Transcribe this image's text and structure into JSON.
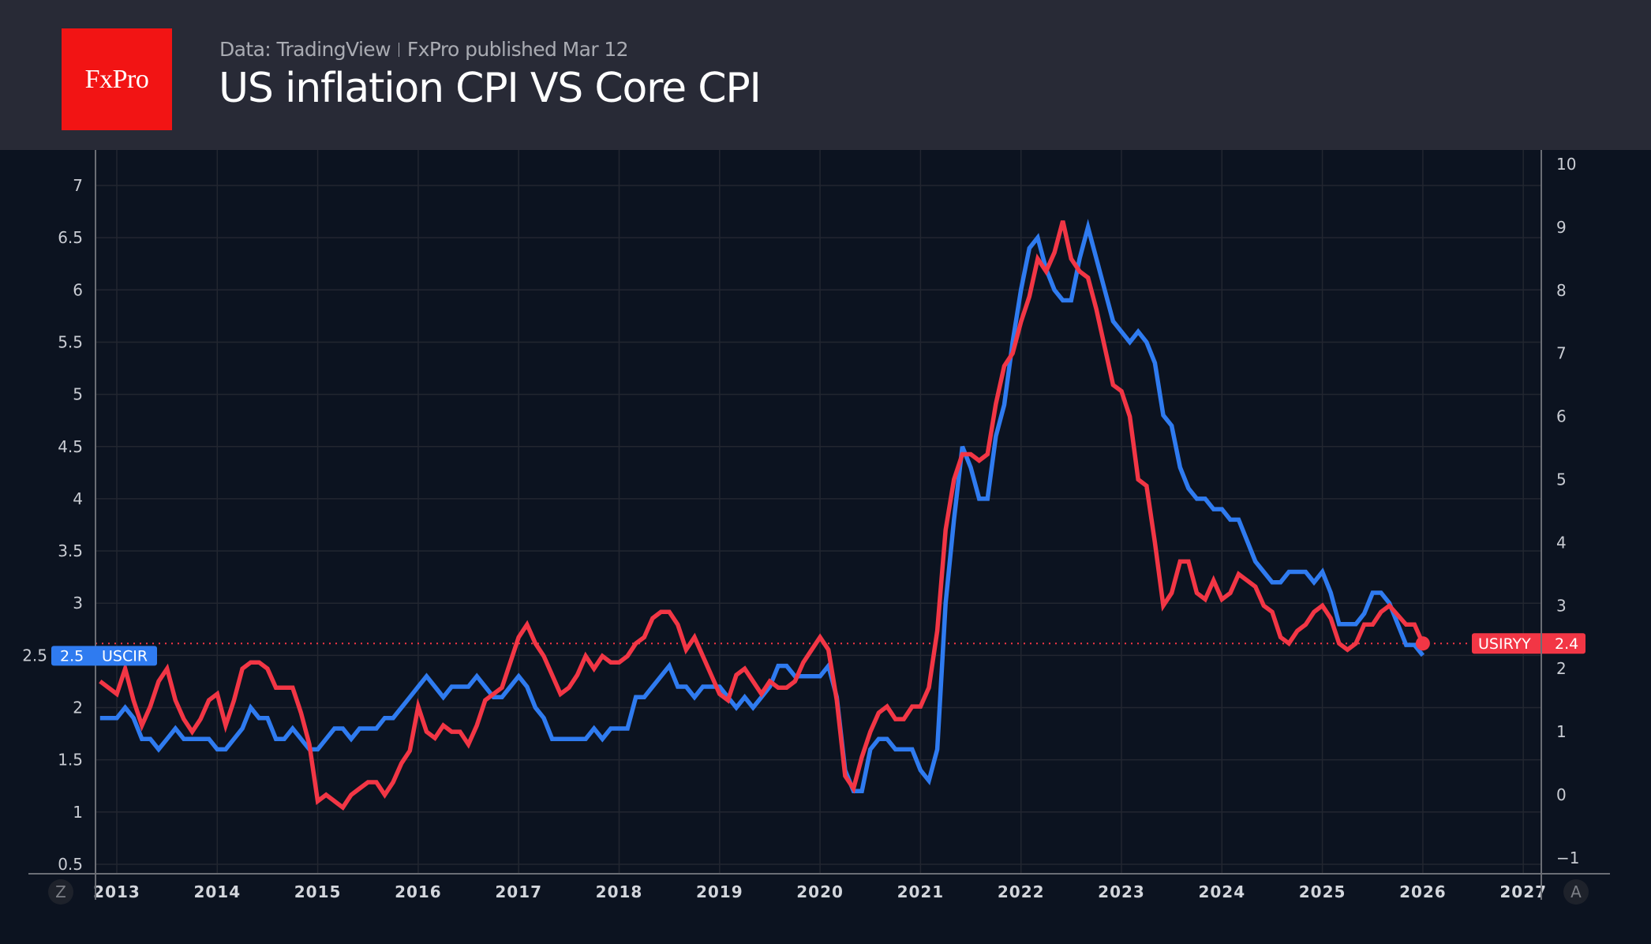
{
  "header": {
    "logo_text": "FxPro",
    "source": "Data: TradingView",
    "publisher": "FxPro published Mar 12",
    "title": "US inflation CPI VS Core CPI"
  },
  "controls": {
    "left_button": "Z",
    "right_button": "A"
  },
  "chart_data": {
    "type": "line",
    "title": "US inflation CPI VS Core CPI",
    "grid": true,
    "x_ticks": [
      "2013",
      "2014",
      "2015",
      "2016",
      "2017",
      "2018",
      "2019",
      "2020",
      "2021",
      "2022",
      "2023",
      "2024",
      "2025",
      "2026",
      "2027"
    ],
    "left_axis": {
      "ticks": [
        "0.5",
        "1",
        "1.5",
        "2",
        "2.5",
        "3",
        "3.5",
        "4",
        "4.5",
        "5",
        "5.5",
        "6",
        "6.5",
        "7"
      ],
      "range": [
        0.5,
        7
      ]
    },
    "right_axis": {
      "ticks": [
        "−1",
        "0",
        "1",
        "2",
        "3",
        "4",
        "5",
        "6",
        "7",
        "8",
        "9",
        "10"
      ],
      "range": [
        -1,
        10
      ]
    },
    "x": [
      "2012-11",
      "2012-12",
      "2013-01",
      "2013-02",
      "2013-03",
      "2013-04",
      "2013-05",
      "2013-06",
      "2013-07",
      "2013-08",
      "2013-09",
      "2013-10",
      "2013-11",
      "2013-12",
      "2014-01",
      "2014-02",
      "2014-03",
      "2014-04",
      "2014-05",
      "2014-06",
      "2014-07",
      "2014-08",
      "2014-09",
      "2014-10",
      "2014-11",
      "2014-12",
      "2015-01",
      "2015-02",
      "2015-03",
      "2015-04",
      "2015-05",
      "2015-06",
      "2015-07",
      "2015-08",
      "2015-09",
      "2015-10",
      "2015-11",
      "2015-12",
      "2016-01",
      "2016-02",
      "2016-03",
      "2016-04",
      "2016-05",
      "2016-06",
      "2016-07",
      "2016-08",
      "2016-09",
      "2016-10",
      "2016-11",
      "2016-12",
      "2017-01",
      "2017-02",
      "2017-03",
      "2017-04",
      "2017-05",
      "2017-06",
      "2017-07",
      "2017-08",
      "2017-09",
      "2017-10",
      "2017-11",
      "2017-12",
      "2018-01",
      "2018-02",
      "2018-03",
      "2018-04",
      "2018-05",
      "2018-06",
      "2018-07",
      "2018-08",
      "2018-09",
      "2018-10",
      "2018-11",
      "2018-12",
      "2019-01",
      "2019-02",
      "2019-03",
      "2019-04",
      "2019-05",
      "2019-06",
      "2019-07",
      "2019-08",
      "2019-09",
      "2019-10",
      "2019-11",
      "2019-12",
      "2020-01",
      "2020-02",
      "2020-03",
      "2020-04",
      "2020-05",
      "2020-06",
      "2020-07",
      "2020-08",
      "2020-09",
      "2020-10",
      "2020-11",
      "2020-12",
      "2021-01",
      "2021-02",
      "2021-03",
      "2021-04",
      "2021-05",
      "2021-06",
      "2021-07",
      "2021-08",
      "2021-09",
      "2021-10",
      "2021-11",
      "2021-12",
      "2022-01",
      "2022-02",
      "2022-03",
      "2022-04",
      "2022-05",
      "2022-06",
      "2022-07",
      "2022-08",
      "2022-09",
      "2022-10",
      "2022-11",
      "2022-12",
      "2023-01",
      "2023-02",
      "2023-03",
      "2023-04",
      "2023-05",
      "2023-06",
      "2023-07",
      "2023-08",
      "2023-09",
      "2023-10",
      "2023-11",
      "2023-12",
      "2024-01",
      "2024-02",
      "2024-03",
      "2024-04",
      "2024-05",
      "2024-06",
      "2024-07",
      "2024-08",
      "2024-09",
      "2024-10",
      "2024-11",
      "2024-12",
      "2025-01",
      "2025-02",
      "2025-03",
      "2025-04",
      "2025-05",
      "2025-06",
      "2025-07",
      "2025-08",
      "2025-09",
      "2025-11",
      "2025-12",
      "2026-01"
    ],
    "series": [
      {
        "name": "USCIR",
        "axis": "left",
        "color": "#2f7bf0",
        "last_value": "2.5",
        "values": [
          1.9,
          1.9,
          1.9,
          2.0,
          1.9,
          1.7,
          1.7,
          1.6,
          1.7,
          1.8,
          1.7,
          1.7,
          1.7,
          1.7,
          1.6,
          1.6,
          1.7,
          1.8,
          2.0,
          1.9,
          1.9,
          1.7,
          1.7,
          1.8,
          1.7,
          1.6,
          1.6,
          1.7,
          1.8,
          1.8,
          1.7,
          1.8,
          1.8,
          1.8,
          1.9,
          1.9,
          2.0,
          2.1,
          2.2,
          2.3,
          2.2,
          2.1,
          2.2,
          2.2,
          2.2,
          2.3,
          2.2,
          2.1,
          2.1,
          2.2,
          2.3,
          2.2,
          2.0,
          1.9,
          1.7,
          1.7,
          1.7,
          1.7,
          1.7,
          1.8,
          1.7,
          1.8,
          1.8,
          1.8,
          2.1,
          2.1,
          2.2,
          2.3,
          2.4,
          2.2,
          2.2,
          2.1,
          2.2,
          2.2,
          2.2,
          2.1,
          2.0,
          2.1,
          2.0,
          2.1,
          2.2,
          2.4,
          2.4,
          2.3,
          2.3,
          2.3,
          2.3,
          2.4,
          2.1,
          1.4,
          1.2,
          1.2,
          1.6,
          1.7,
          1.7,
          1.6,
          1.6,
          1.6,
          1.4,
          1.3,
          1.6,
          3.0,
          3.8,
          4.5,
          4.3,
          4.0,
          4.0,
          4.6,
          4.9,
          5.5,
          6.0,
          6.4,
          6.5,
          6.2,
          6.0,
          5.9,
          5.9,
          6.3,
          6.6,
          6.3,
          6.0,
          5.7,
          5.6,
          5.5,
          5.6,
          5.5,
          5.3,
          4.8,
          4.7,
          4.3,
          4.1,
          4.0,
          4.0,
          3.9,
          3.9,
          3.8,
          3.8,
          3.6,
          3.4,
          3.3,
          3.2,
          3.2,
          3.3,
          3.3,
          3.3,
          3.2,
          3.3,
          3.1,
          2.8,
          2.8,
          2.8,
          2.9,
          3.1,
          3.1,
          3.0,
          2.6,
          2.6,
          2.5
        ]
      },
      {
        "name": "USIRYY",
        "axis": "right",
        "color": "#f23645",
        "last_value": "2.4",
        "values": [
          1.8,
          1.7,
          1.6,
          2.0,
          1.5,
          1.1,
          1.4,
          1.8,
          2.0,
          1.5,
          1.2,
          1.0,
          1.2,
          1.5,
          1.6,
          1.1,
          1.5,
          2.0,
          2.1,
          2.1,
          2.0,
          1.7,
          1.7,
          1.7,
          1.3,
          0.8,
          -0.1,
          0.0,
          -0.1,
          -0.2,
          0.0,
          0.1,
          0.2,
          0.2,
          0.0,
          0.2,
          0.5,
          0.7,
          1.4,
          1.0,
          0.9,
          1.1,
          1.0,
          1.0,
          0.8,
          1.1,
          1.5,
          1.6,
          1.7,
          2.1,
          2.5,
          2.7,
          2.4,
          2.2,
          1.9,
          1.6,
          1.7,
          1.9,
          2.2,
          2.0,
          2.2,
          2.1,
          2.1,
          2.2,
          2.4,
          2.5,
          2.8,
          2.9,
          2.9,
          2.7,
          2.3,
          2.5,
          2.2,
          1.9,
          1.6,
          1.5,
          1.9,
          2.0,
          1.8,
          1.6,
          1.8,
          1.7,
          1.7,
          1.8,
          2.1,
          2.3,
          2.5,
          2.3,
          1.5,
          0.3,
          0.1,
          0.6,
          1.0,
          1.3,
          1.4,
          1.2,
          1.2,
          1.4,
          1.4,
          1.7,
          2.6,
          4.2,
          5.0,
          5.4,
          5.4,
          5.3,
          5.4,
          6.2,
          6.8,
          7.0,
          7.5,
          7.9,
          8.5,
          8.3,
          8.6,
          9.1,
          8.5,
          8.3,
          8.2,
          7.7,
          7.1,
          6.5,
          6.4,
          6.0,
          5.0,
          4.9,
          4.0,
          3.0,
          3.2,
          3.7,
          3.7,
          3.2,
          3.1,
          3.4,
          3.1,
          3.2,
          3.5,
          3.4,
          3.3,
          3.0,
          2.9,
          2.5,
          2.4,
          2.6,
          2.7,
          2.9,
          3.0,
          2.8,
          2.4,
          2.3,
          2.4,
          2.7,
          2.7,
          2.9,
          3.0,
          2.7,
          2.7,
          2.4
        ]
      }
    ]
  }
}
